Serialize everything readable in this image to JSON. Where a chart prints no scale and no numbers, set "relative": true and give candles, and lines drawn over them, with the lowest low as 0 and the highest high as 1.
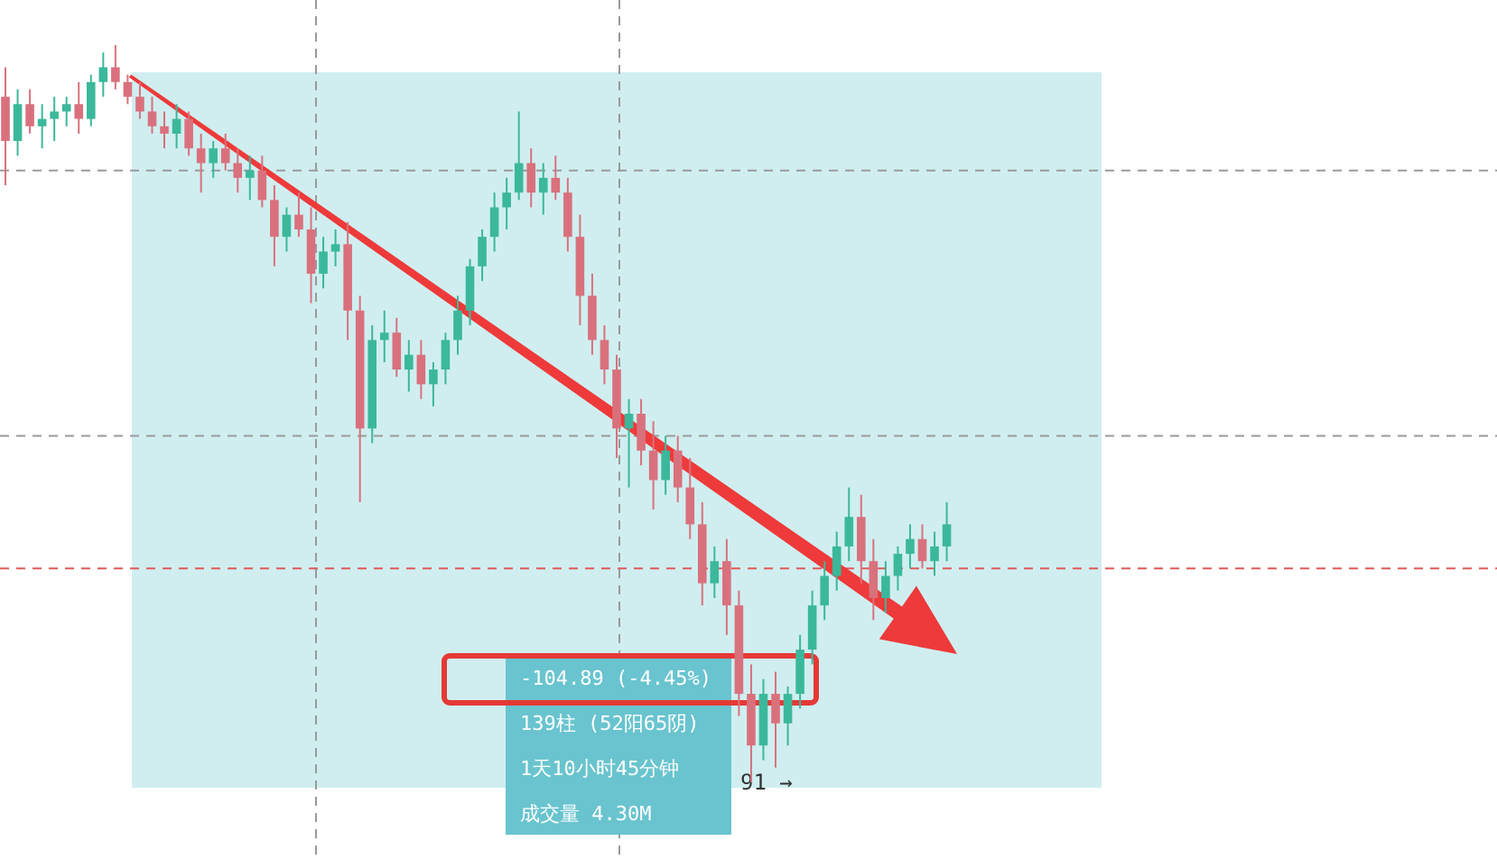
{
  "chart_data": {
    "type": "candlestick",
    "relative": true,
    "categories": [
      null,
      null,
      null,
      null,
      null,
      null,
      null,
      null,
      null,
      null,
      null,
      null,
      null,
      null,
      null,
      null,
      null,
      null,
      null,
      null,
      null,
      null,
      null,
      null,
      null,
      null,
      null,
      null,
      null,
      null,
      null,
      null,
      null,
      null,
      null,
      null,
      null,
      null,
      null,
      null,
      null,
      null,
      null,
      null,
      null,
      null,
      null,
      null,
      null,
      null,
      null,
      null,
      null,
      null,
      null,
      null,
      null,
      null,
      null,
      null,
      null,
      null,
      null,
      null,
      null,
      null,
      null,
      null,
      null,
      null,
      null,
      null,
      null,
      null,
      null,
      null,
      null,
      null
    ],
    "ohlc": [
      [
        0.93,
        0.97,
        0.81,
        0.87
      ],
      [
        0.87,
        0.94,
        0.85,
        0.92
      ],
      [
        0.92,
        0.94,
        0.88,
        0.89
      ],
      [
        0.89,
        0.92,
        0.86,
        0.9
      ],
      [
        0.9,
        0.93,
        0.87,
        0.91
      ],
      [
        0.91,
        0.93,
        0.89,
        0.92
      ],
      [
        0.92,
        0.95,
        0.88,
        0.9
      ],
      [
        0.9,
        0.96,
        0.89,
        0.95
      ],
      [
        0.95,
        0.99,
        0.93,
        0.97
      ],
      [
        0.97,
        1.0,
        0.94,
        0.95
      ],
      [
        0.95,
        0.96,
        0.92,
        0.93
      ],
      [
        0.93,
        0.95,
        0.9,
        0.91
      ],
      [
        0.91,
        0.93,
        0.88,
        0.89
      ],
      [
        0.89,
        0.91,
        0.86,
        0.88
      ],
      [
        0.88,
        0.92,
        0.86,
        0.9
      ],
      [
        0.9,
        0.91,
        0.85,
        0.86
      ],
      [
        0.86,
        0.88,
        0.8,
        0.84
      ],
      [
        0.84,
        0.87,
        0.82,
        0.86
      ],
      [
        0.86,
        0.88,
        0.83,
        0.84
      ],
      [
        0.84,
        0.86,
        0.8,
        0.82
      ],
      [
        0.82,
        0.85,
        0.79,
        0.83
      ],
      [
        0.83,
        0.85,
        0.78,
        0.79
      ],
      [
        0.79,
        0.81,
        0.7,
        0.74
      ],
      [
        0.74,
        0.78,
        0.72,
        0.77
      ],
      [
        0.77,
        0.8,
        0.74,
        0.75
      ],
      [
        0.75,
        0.78,
        0.65,
        0.69
      ],
      [
        0.69,
        0.74,
        0.67,
        0.72
      ],
      [
        0.72,
        0.75,
        0.7,
        0.73
      ],
      [
        0.73,
        0.76,
        0.6,
        0.64
      ],
      [
        0.64,
        0.66,
        0.38,
        0.48
      ],
      [
        0.48,
        0.62,
        0.46,
        0.6
      ],
      [
        0.6,
        0.64,
        0.57,
        0.61
      ],
      [
        0.61,
        0.63,
        0.55,
        0.56
      ],
      [
        0.56,
        0.6,
        0.53,
        0.58
      ],
      [
        0.58,
        0.6,
        0.52,
        0.54
      ],
      [
        0.54,
        0.57,
        0.51,
        0.56
      ],
      [
        0.56,
        0.61,
        0.54,
        0.6
      ],
      [
        0.6,
        0.66,
        0.58,
        0.64
      ],
      [
        0.64,
        0.71,
        0.62,
        0.7
      ],
      [
        0.7,
        0.75,
        0.68,
        0.74
      ],
      [
        0.74,
        0.8,
        0.72,
        0.78
      ],
      [
        0.78,
        0.82,
        0.75,
        0.8
      ],
      [
        0.8,
        0.91,
        0.79,
        0.84
      ],
      [
        0.84,
        0.86,
        0.78,
        0.8
      ],
      [
        0.8,
        0.84,
        0.77,
        0.82
      ],
      [
        0.82,
        0.85,
        0.79,
        0.8
      ],
      [
        0.8,
        0.82,
        0.72,
        0.74
      ],
      [
        0.74,
        0.77,
        0.62,
        0.66
      ],
      [
        0.66,
        0.69,
        0.58,
        0.6
      ],
      [
        0.6,
        0.62,
        0.54,
        0.56
      ],
      [
        0.56,
        0.58,
        0.44,
        0.48
      ],
      [
        0.48,
        0.52,
        0.4,
        0.5
      ],
      [
        0.5,
        0.52,
        0.43,
        0.45
      ],
      [
        0.45,
        0.49,
        0.37,
        0.41
      ],
      [
        0.41,
        0.47,
        0.39,
        0.45
      ],
      [
        0.45,
        0.47,
        0.38,
        0.4
      ],
      [
        0.4,
        0.44,
        0.33,
        0.35
      ],
      [
        0.35,
        0.38,
        0.24,
        0.27
      ],
      [
        0.27,
        0.32,
        0.25,
        0.3
      ],
      [
        0.3,
        0.33,
        0.2,
        0.24
      ],
      [
        0.24,
        0.26,
        0.09,
        0.12
      ],
      [
        0.12,
        0.16,
        0.0,
        0.05
      ],
      [
        0.05,
        0.14,
        0.03,
        0.12
      ],
      [
        0.12,
        0.15,
        0.02,
        0.08
      ],
      [
        0.08,
        0.13,
        0.05,
        0.12
      ],
      [
        0.12,
        0.2,
        0.1,
        0.18
      ],
      [
        0.18,
        0.26,
        0.16,
        0.24
      ],
      [
        0.24,
        0.3,
        0.22,
        0.28
      ],
      [
        0.28,
        0.34,
        0.26,
        0.32
      ],
      [
        0.32,
        0.4,
        0.3,
        0.36
      ],
      [
        0.36,
        0.39,
        0.27,
        0.3
      ],
      [
        0.3,
        0.33,
        0.22,
        0.25
      ],
      [
        0.25,
        0.3,
        0.23,
        0.28
      ],
      [
        0.28,
        0.32,
        0.26,
        0.31
      ],
      [
        0.31,
        0.35,
        0.29,
        0.33
      ],
      [
        0.33,
        0.35,
        0.29,
        0.3
      ],
      [
        0.3,
        0.34,
        0.28,
        0.32
      ],
      [
        0.32,
        0.38,
        0.3,
        0.35
      ]
    ],
    "colors": [
      "#d9717d",
      "#3bb89b",
      "#d9717d",
      "#3bb89b",
      "#3bb89b",
      "#3bb89b",
      "#d9717d",
      "#3bb89b",
      "#3bb89b",
      "#d9717d",
      "#d9717d",
      "#d9717d",
      "#d9717d",
      "#d9717d",
      "#3bb89b",
      "#d9717d",
      "#d9717d",
      "#3bb89b",
      "#d9717d",
      "#d9717d",
      "#3bb89b",
      "#d9717d",
      "#d9717d",
      "#3bb89b",
      "#d9717d",
      "#d9717d",
      "#3bb89b",
      "#3bb89b",
      "#d9717d",
      "#d9717d",
      "#3bb89b",
      "#3bb89b",
      "#d9717d",
      "#3bb89b",
      "#d9717d",
      "#3bb89b",
      "#3bb89b",
      "#3bb89b",
      "#3bb89b",
      "#3bb89b",
      "#3bb89b",
      "#3bb89b",
      "#3bb89b",
      "#d9717d",
      "#3bb89b",
      "#d9717d",
      "#d9717d",
      "#d9717d",
      "#d9717d",
      "#d9717d",
      "#d9717d",
      "#3bb89b",
      "#d9717d",
      "#d9717d",
      "#3bb89b",
      "#d9717d",
      "#d9717d",
      "#d9717d",
      "#3bb89b",
      "#d9717d",
      "#d9717d",
      "#d9717d",
      "#3bb89b",
      "#d9717d",
      "#3bb89b",
      "#3bb89b",
      "#3bb89b",
      "#3bb89b",
      "#3bb89b",
      "#3bb89b",
      "#d9717d",
      "#d9717d",
      "#3bb89b",
      "#3bb89b",
      "#3bb89b",
      "#d9717d",
      "#3bb89b",
      "#3bb89b"
    ],
    "ref_lines": [
      {
        "axis": "y",
        "value": 0.83,
        "color": "#9a9a9a",
        "line_style": "dashed"
      },
      {
        "axis": "y",
        "value": 0.47,
        "color": "#9a9a9a",
        "line_style": "dashed"
      },
      {
        "axis": "y",
        "value": 0.29,
        "color": "#e05a5a",
        "line_style": "dashed"
      }
    ],
    "annotations": [
      "-104.89 (-4.45%)",
      "139柱 (52阳65阴)",
      "1天10小时45分钟",
      "成交量 4.30M",
      "91 →"
    ]
  }
}
